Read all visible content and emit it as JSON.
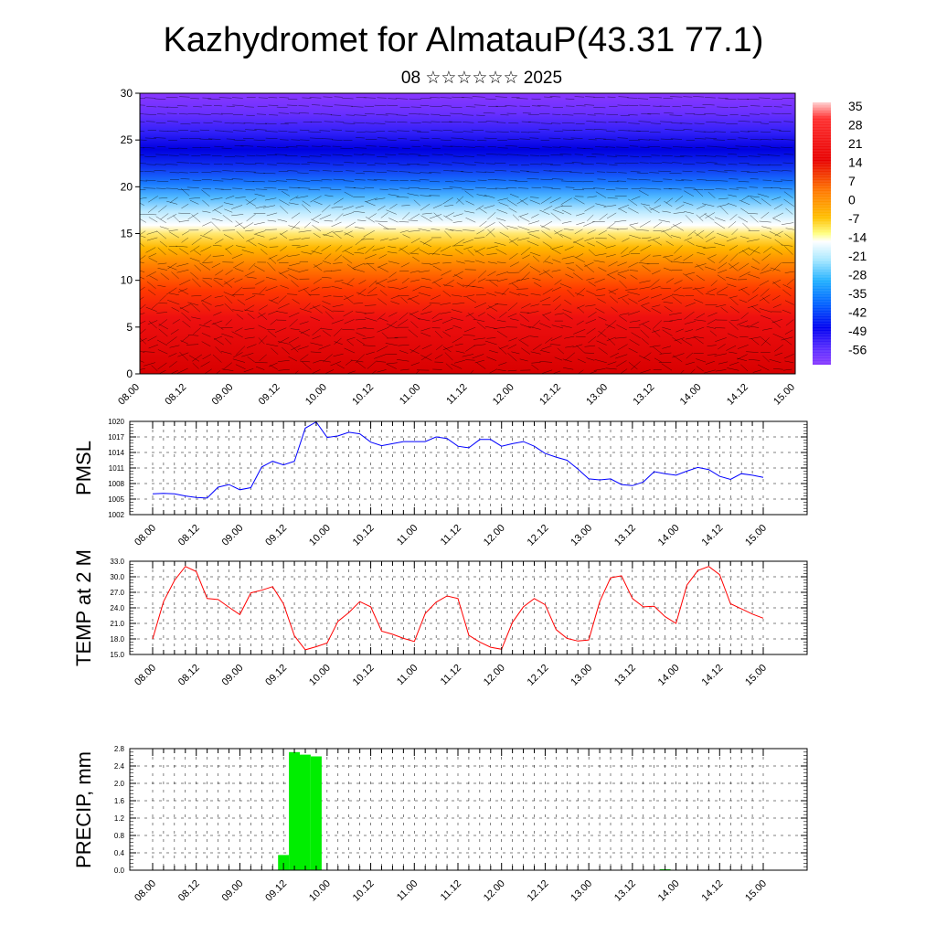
{
  "title": "Kazhydromet for AlmatauP(43.31 77.1)",
  "subtitle": "08 ☆☆☆☆☆☆ 2025",
  "time_labels": [
    "08.00",
    "08.12",
    "09.00",
    "09.12",
    "10.00",
    "10.12",
    "11.00",
    "11.12",
    "12.00",
    "12.12",
    "13.00",
    "13.12",
    "14.00",
    "14.12",
    "15.00"
  ],
  "colorbar": {
    "labels": [
      "35",
      "28",
      "21",
      "14",
      "7",
      "0",
      "-7",
      "-14",
      "-21",
      "-28",
      "-35",
      "-42",
      "-49",
      "-56"
    ]
  },
  "chart_data": [
    {
      "type": "heatmap",
      "name": "vertical-section",
      "ylim": [
        0,
        30
      ],
      "y_ticks": [
        "0",
        "5",
        "10",
        "15",
        "20",
        "25",
        "30"
      ],
      "x_ticks": [
        "08.00",
        "08.12",
        "09.00",
        "09.12",
        "10.00",
        "10.12",
        "11.00",
        "11.12",
        "12.00",
        "12.12",
        "13.00",
        "13.12",
        "14.00",
        "14.12",
        "15.00"
      ],
      "temperature_profile": [
        {
          "level": 0,
          "value": 30
        },
        {
          "level": 5,
          "value": 27
        },
        {
          "level": 8,
          "value": 22
        },
        {
          "level": 10,
          "value": 16
        },
        {
          "level": 12,
          "value": 8
        },
        {
          "level": 14,
          "value": 0
        },
        {
          "level": 15.5,
          "value": -8
        },
        {
          "level": 17,
          "value": -18
        },
        {
          "level": 19,
          "value": -30
        },
        {
          "level": 21,
          "value": -40
        },
        {
          "level": 23,
          "value": -50
        },
        {
          "level": 25,
          "value": -56
        },
        {
          "level": 27,
          "value": -52
        },
        {
          "level": 30,
          "value": -48
        }
      ]
    },
    {
      "type": "line",
      "name": "pmsl",
      "ylabel": "PMSL",
      "ylim": [
        1002,
        1020
      ],
      "y_ticks": [
        "1002",
        "1005",
        "1008",
        "1011",
        "1014",
        "1017",
        "1020"
      ],
      "color": "#0000ff",
      "x": [
        "08.00",
        "08.03",
        "08.06",
        "08.09",
        "08.12",
        "08.15",
        "08.18",
        "08.21",
        "09.00",
        "09.03",
        "09.06",
        "09.09",
        "09.12",
        "09.15",
        "09.18",
        "09.21",
        "10.00",
        "10.03",
        "10.06",
        "10.09",
        "10.12",
        "10.15",
        "10.18",
        "10.21",
        "11.00",
        "11.03",
        "11.06",
        "11.09",
        "11.12",
        "11.15",
        "11.18",
        "11.21",
        "12.00",
        "12.03",
        "12.06",
        "12.09",
        "12.12",
        "12.15",
        "12.18",
        "12.21",
        "13.00",
        "13.03",
        "13.06",
        "13.09",
        "13.12",
        "13.15",
        "13.18",
        "13.21",
        "14.00",
        "14.03",
        "14.06",
        "14.09",
        "14.12",
        "14.15",
        "14.18",
        "14.21",
        "15.00"
      ],
      "values": [
        1006.0,
        1006.1,
        1006.0,
        1005.6,
        1005.3,
        1005.2,
        1007.3,
        1007.8,
        1006.8,
        1007.2,
        1011.2,
        1012.3,
        1011.6,
        1012.3,
        1018.7,
        1019.9,
        1016.9,
        1017.2,
        1017.9,
        1017.6,
        1016.0,
        1015.3,
        1015.7,
        1016.1,
        1016.1,
        1016.1,
        1017.0,
        1016.7,
        1015.2,
        1014.9,
        1016.5,
        1016.5,
        1015.2,
        1015.7,
        1016.1,
        1015.2,
        1013.8,
        1013.1,
        1012.5,
        1010.8,
        1008.9,
        1008.7,
        1008.9,
        1007.8,
        1007.6,
        1008.3,
        1010.3,
        1009.9,
        1009.6,
        1010.4,
        1011.1,
        1010.7,
        1009.4,
        1008.8,
        1009.9,
        1009.6,
        1009.2
      ]
    },
    {
      "type": "line",
      "name": "temp-2m",
      "ylabel": "TEMP at 2 M",
      "ylim": [
        15.0,
        33.0
      ],
      "y_ticks": [
        "15.0",
        "18.0",
        "21.0",
        "24.0",
        "27.0",
        "30.0",
        "33.0"
      ],
      "color": "#ff0000",
      "values": [
        18.0,
        25.2,
        29.3,
        32.0,
        31.0,
        25.8,
        25.6,
        24.1,
        22.7,
        26.9,
        27.4,
        28.1,
        24.8,
        18.6,
        15.9,
        16.5,
        17.2,
        21.4,
        23.1,
        25.2,
        24.2,
        19.5,
        18.9,
        18.1,
        17.5,
        22.9,
        25.1,
        26.3,
        25.8,
        18.7,
        17.4,
        16.4,
        16.0,
        21.2,
        24.2,
        25.8,
        24.6,
        19.8,
        18.1,
        17.6,
        17.8,
        25.2,
        29.8,
        30.2,
        25.8,
        24.2,
        24.3,
        22.3,
        21.0,
        28.4,
        31.2,
        32.0,
        30.4,
        24.8,
        23.8,
        22.8,
        22.0
      ]
    },
    {
      "type": "bar",
      "name": "precip",
      "ylabel": "PRECIP, mm",
      "ylim": [
        0.0,
        2.8
      ],
      "y_ticks": [
        "0.0",
        "0.4",
        "0.8",
        "1.2",
        "1.6",
        "2.0",
        "2.4",
        "2.8"
      ],
      "color": "#00ee00",
      "x": [
        "09.12",
        "09.15",
        "09.18",
        "09.21",
        "13.21"
      ],
      "values": [
        0.35,
        2.72,
        2.66,
        2.62,
        0.02
      ]
    }
  ]
}
